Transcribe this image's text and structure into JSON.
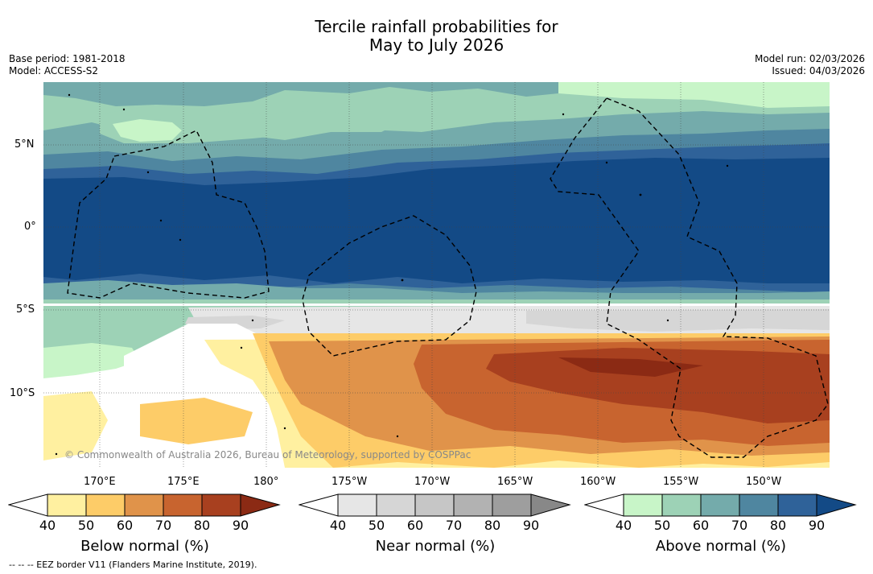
{
  "title": {
    "line1": "Tercile rainfall probabilities for",
    "line2": "May to July 2026"
  },
  "meta_left": {
    "base_period": "Base period: 1981-2018",
    "model": "Model: ACCESS-S2"
  },
  "meta_right": {
    "model_run": "Model run: 02/03/2026",
    "issued": "Issued: 04/03/2026"
  },
  "map": {
    "lat_labels": [
      "5°N",
      "0°",
      "5°S",
      "10°S"
    ],
    "lon_labels": [
      "170°E",
      "175°E",
      "180°",
      "175°W",
      "170°W",
      "165°W",
      "160°W",
      "155°W",
      "150°W"
    ],
    "credit": "© Commonwealth of Australia 2026, Bureau of Meteorology, supported by COSPPac",
    "eez_legend": "-- -- -- EEZ border V11 (Flanders Marine Institute, 2019).",
    "colors": {
      "above": [
        "#c8f5c8",
        "#9dd2b6",
        "#74abab",
        "#4f86a0",
        "#2f6299",
        "#134a86"
      ],
      "near": [
        "#e6e6e6",
        "#d6d6d6",
        "#c6c6c6",
        "#b2b2b2",
        "#9e9e9e",
        "#888888"
      ],
      "below": [
        "#fff0a0",
        "#fdcc68",
        "#e0934a",
        "#c8642f",
        "#a8401f",
        "#8b2a14"
      ]
    }
  },
  "colorbars": [
    {
      "title": "Below normal (%)",
      "ticks": [
        "40",
        "50",
        "60",
        "70",
        "80",
        "90"
      ],
      "colors": [
        "#ffffff",
        "#fff0a0",
        "#fdcc68",
        "#e0934a",
        "#c8642f",
        "#a8401f",
        "#8b2a14"
      ]
    },
    {
      "title": "Near normal (%)",
      "ticks": [
        "40",
        "50",
        "60",
        "70",
        "80",
        "90"
      ],
      "colors": [
        "#ffffff",
        "#e6e6e6",
        "#d6d6d6",
        "#c6c6c6",
        "#b2b2b2",
        "#9e9e9e",
        "#888888"
      ]
    },
    {
      "title": "Above normal (%)",
      "ticks": [
        "40",
        "50",
        "60",
        "70",
        "80",
        "90"
      ],
      "colors": [
        "#ffffff",
        "#c8f5c8",
        "#9dd2b6",
        "#74abab",
        "#4f86a0",
        "#2f6299",
        "#134a86"
      ]
    }
  ]
}
